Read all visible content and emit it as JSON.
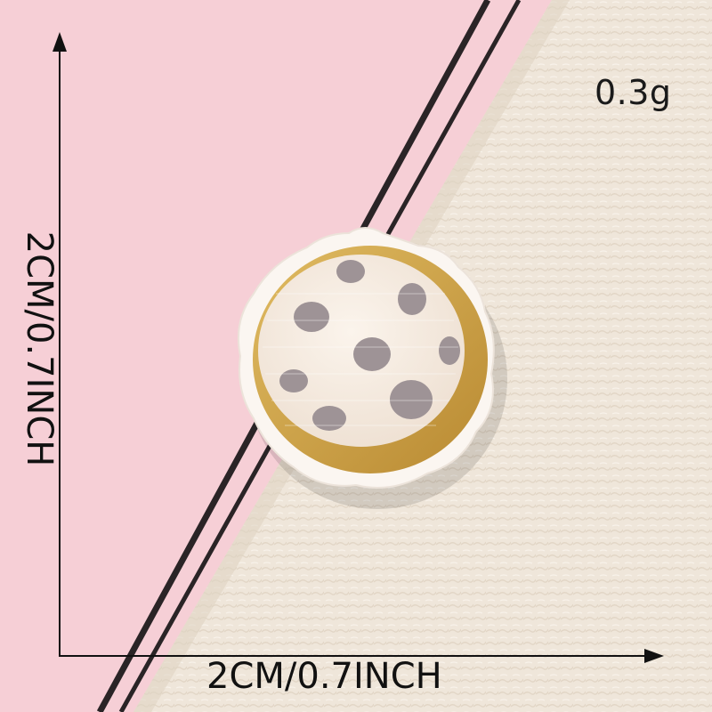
{
  "photo": {
    "subject": "embroidered patch",
    "colors": {
      "pink_card": "#f6cfd6",
      "fabric": "#efe6da",
      "stripe": "#2a2426",
      "patch_face": "#f7ece2",
      "patch_rim": "#d0a446",
      "patch_spots": "#9e9396"
    }
  },
  "labels": {
    "weight": "0.3g",
    "width": "2CM/0.7INCH",
    "height": "2CM/0.7INCH"
  }
}
